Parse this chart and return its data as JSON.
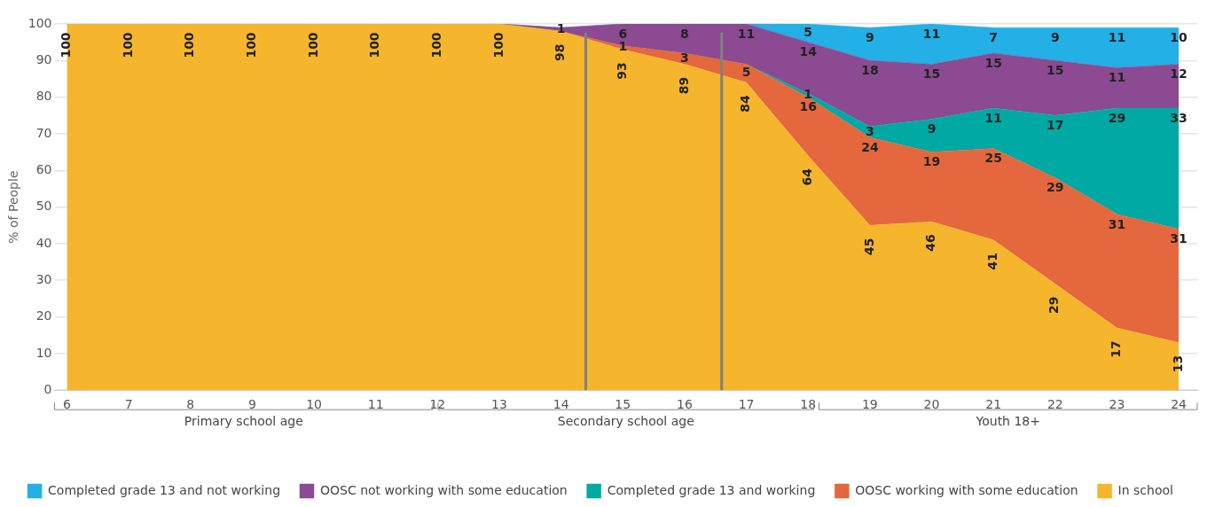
{
  "chart_data": {
    "type": "area",
    "stacked": true,
    "ylabel": "% of People",
    "x": [
      6,
      7,
      8,
      9,
      10,
      11,
      12,
      13,
      14,
      15,
      16,
      17,
      18,
      19,
      20,
      21,
      22,
      23,
      24
    ],
    "xlim": [
      5.8,
      24.3
    ],
    "xticks": [
      6,
      7,
      8,
      9,
      10,
      11,
      12,
      13,
      14,
      15,
      16,
      17,
      18,
      19,
      20,
      21,
      22,
      23,
      24
    ],
    "ylim": [
      0,
      100
    ],
    "yticks": [
      0,
      10,
      20,
      30,
      40,
      50,
      60,
      70,
      80,
      90,
      100
    ],
    "grid": "y",
    "legend": "bottom",
    "series": [
      {
        "name": "In school",
        "color": "#f5b52c",
        "values": [
          100,
          100,
          100,
          100,
          100,
          100,
          100,
          100,
          98,
          93,
          89,
          84,
          64,
          45,
          46,
          41,
          29,
          17,
          13
        ],
        "value_labels": [
          "100",
          "100",
          "100",
          "100",
          "100",
          "100",
          "100",
          "100",
          "98",
          "93",
          "89",
          "84",
          "64",
          "45",
          "46",
          "41",
          "29",
          "17",
          "13"
        ]
      },
      {
        "name": "OOSC working with some education",
        "color": "#e5673d",
        "values": [
          0,
          0,
          0,
          0,
          0,
          0,
          0,
          0,
          0,
          1,
          3,
          5,
          16,
          24,
          19,
          25,
          29,
          31,
          31
        ],
        "value_labels": [
          null,
          null,
          null,
          null,
          null,
          null,
          null,
          null,
          null,
          "1",
          "3",
          "5",
          "16",
          "24",
          "19",
          "25",
          "29",
          "31",
          "31"
        ]
      },
      {
        "name": "Completed grade 13 and working",
        "color": "#00a9a3",
        "values": [
          0,
          0,
          0,
          0,
          0,
          0,
          0,
          0,
          0,
          0,
          0,
          0,
          1,
          3,
          9,
          11,
          17,
          29,
          33
        ],
        "value_labels": [
          null,
          null,
          null,
          null,
          null,
          null,
          null,
          null,
          null,
          null,
          null,
          null,
          "1",
          "3",
          "9",
          "11",
          "17",
          "29",
          "33"
        ]
      },
      {
        "name": "OOSC not working with some education",
        "color": "#8b4a92",
        "values": [
          0,
          0,
          0,
          0,
          0,
          0,
          0,
          0,
          1,
          6,
          8,
          11,
          14,
          18,
          15,
          15,
          15,
          11,
          12
        ],
        "value_labels": [
          null,
          null,
          null,
          null,
          null,
          null,
          null,
          null,
          "1",
          "6",
          "8",
          "11",
          "14",
          "18",
          "15",
          "15",
          "15",
          "11",
          "12"
        ]
      },
      {
        "name": "Completed grade 13 and not working",
        "color": "#22b0e6",
        "values": [
          0,
          0,
          0,
          0,
          0,
          0,
          0,
          0,
          0,
          0,
          0,
          0,
          5,
          9,
          11,
          7,
          9,
          11,
          10
        ],
        "value_labels": [
          null,
          null,
          null,
          null,
          null,
          null,
          null,
          null,
          null,
          null,
          null,
          null,
          "5",
          "9",
          "11",
          "7",
          "9",
          "11",
          "10"
        ]
      }
    ],
    "ref_lines": [
      {
        "axis": "x",
        "value": 14.4,
        "color": "#808080"
      },
      {
        "axis": "x",
        "value": 16.6,
        "color": "#808080"
      }
    ],
    "annotations": [
      "Primary school age",
      "Secondary school age",
      "Youth 18+"
    ]
  }
}
